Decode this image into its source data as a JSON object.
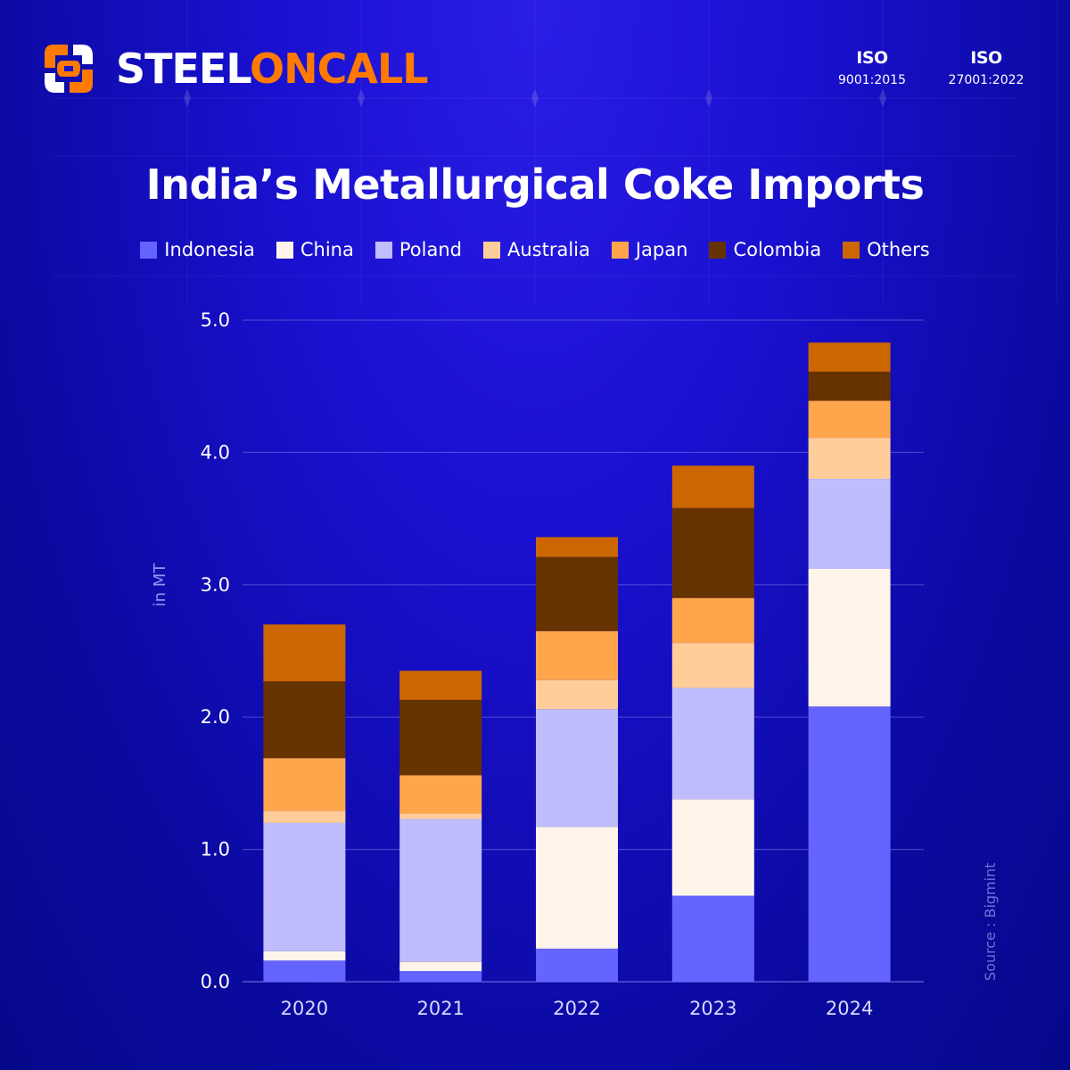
{
  "brand": {
    "name_part1": "STEEL",
    "name_part2": "ONCALL",
    "primary_color": "#ff7a00"
  },
  "certifications": [
    {
      "mark": "ISO",
      "code": "9001:2015"
    },
    {
      "mark": "ISO",
      "code": "27001:2022"
    }
  ],
  "source": "Source : Bigmint",
  "chart_data": {
    "type": "bar",
    "stacked": true,
    "title": "India’s Metallurgical Coke Imports",
    "xlabel": "",
    "ylabel": "in MT",
    "ylim": [
      0,
      5.0
    ],
    "yticks": [
      "0.0",
      "1.0",
      "2.0",
      "3.0",
      "4.0",
      "5.0"
    ],
    "grid": true,
    "legend_position": "top",
    "categories": [
      "2020",
      "2021",
      "2022",
      "2023",
      "2024"
    ],
    "series": [
      {
        "name": "Indonesia",
        "color": "#6464ff",
        "values": [
          0.16,
          0.08,
          0.25,
          0.65,
          2.08
        ]
      },
      {
        "name": "China",
        "color": "#fff4ea",
        "values": [
          0.07,
          0.07,
          0.92,
          0.73,
          1.04
        ]
      },
      {
        "name": "Poland",
        "color": "#bfbdfd",
        "values": [
          0.97,
          1.08,
          0.89,
          0.84,
          0.68
        ]
      },
      {
        "name": "Australia",
        "color": "#ffcd9a",
        "values": [
          0.09,
          0.04,
          0.22,
          0.34,
          0.31
        ]
      },
      {
        "name": "Japan",
        "color": "#ffa64d",
        "values": [
          0.4,
          0.29,
          0.37,
          0.34,
          0.28
        ]
      },
      {
        "name": "Colombia",
        "color": "#663300",
        "values": [
          0.58,
          0.57,
          0.56,
          0.68,
          0.22
        ]
      },
      {
        "name": "Others",
        "color": "#cc6600",
        "values": [
          0.43,
          0.22,
          0.15,
          0.32,
          0.22
        ]
      }
    ]
  }
}
